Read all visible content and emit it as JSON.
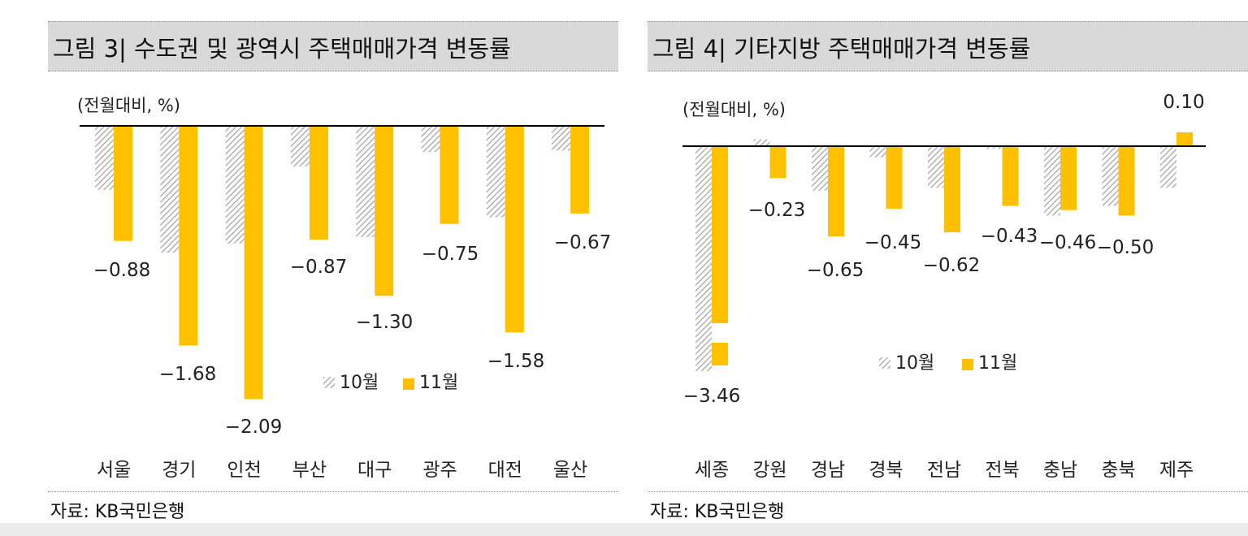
{
  "colors": {
    "nov": "#FFC000",
    "oct_stroke": "#a6a6a6",
    "axis": "#000000"
  },
  "left": {
    "title": "그림 3| 수도권 및 광역시 주택매매가격 변동률",
    "source": "자료: KB국민은행",
    "chart_data": {
      "type": "bar",
      "unit_label": "(전월대비, %)",
      "categories": [
        "서울",
        "경기",
        "인천",
        "부산",
        "대구",
        "광주",
        "대전",
        "울산"
      ],
      "series": [
        {
          "name": "10월",
          "values": [
            -0.49,
            -0.97,
            -0.9,
            -0.31,
            -0.85,
            -0.2,
            -0.7,
            -0.19
          ]
        },
        {
          "name": "11월",
          "values": [
            -0.88,
            -1.68,
            -2.09,
            -0.87,
            -1.3,
            -0.75,
            -1.58,
            -0.67
          ]
        }
      ],
      "data_labels": [
        "-0.88",
        "-1.68",
        "-2.09",
        "-0.87",
        "-1.30",
        "-0.75",
        "-1.58",
        "-0.67"
      ],
      "legend": {
        "oct": "10월",
        "nov": "11월"
      },
      "ylim": [
        -2.09,
        0
      ]
    }
  },
  "right": {
    "title": "그림 4| 기타지방 주택매매가격 변동률",
    "source": "자료: KB국민은행",
    "chart_data": {
      "type": "bar",
      "unit_label": "(전월대비, %)",
      "categories": [
        "세종",
        "강원",
        "경남",
        "경북",
        "전남",
        "전북",
        "충남",
        "충북",
        "제주"
      ],
      "series": [
        {
          "name": "10월",
          "values": [
            -1.62,
            0.05,
            -0.32,
            -0.08,
            -0.3,
            -0.02,
            -0.5,
            -0.43,
            -0.3
          ]
        },
        {
          "name": "11월",
          "values": [
            -3.46,
            -0.23,
            -0.65,
            -0.45,
            -0.62,
            -0.43,
            -0.46,
            -0.5,
            0.1
          ]
        }
      ],
      "data_labels": [
        "-3.46",
        "-0.23",
        "-0.65",
        "-0.45",
        "-0.62",
        "-0.43",
        "-0.46",
        "-0.50",
        "0.10"
      ],
      "legend": {
        "oct": "10월",
        "nov": "11월"
      },
      "ylim": [
        -3.46,
        0.1
      ]
    }
  }
}
